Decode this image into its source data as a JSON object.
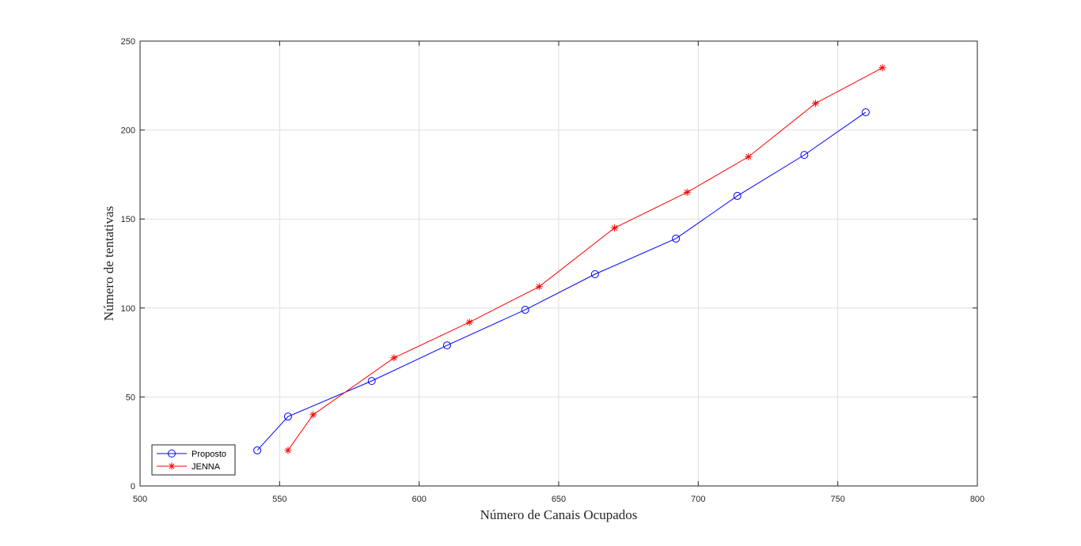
{
  "chart_data": {
    "type": "line",
    "xlabel": "Número de Canais Ocupados",
    "ylabel": "Número de tentativas",
    "xlim": [
      500,
      800
    ],
    "ylim": [
      0,
      250
    ],
    "xticks": [
      500,
      550,
      600,
      650,
      700,
      750,
      800
    ],
    "yticks": [
      0,
      50,
      100,
      150,
      200,
      250
    ],
    "grid": true,
    "legend_position": "bottom-left",
    "series": [
      {
        "name": "Proposto",
        "color": "#0000ff",
        "marker": "circle",
        "x": [
          542,
          553,
          583,
          610,
          638,
          663,
          692,
          714,
          738,
          760
        ],
        "y": [
          20,
          39,
          59,
          79,
          99,
          119,
          139,
          163,
          186,
          210
        ]
      },
      {
        "name": "JENNA",
        "color": "#ff0000",
        "marker": "asterisk",
        "x": [
          553,
          562,
          591,
          618,
          643,
          670,
          696,
          718,
          742,
          766
        ],
        "y": [
          20,
          40,
          72,
          92,
          112,
          145,
          165,
          185,
          215,
          235
        ]
      }
    ]
  }
}
